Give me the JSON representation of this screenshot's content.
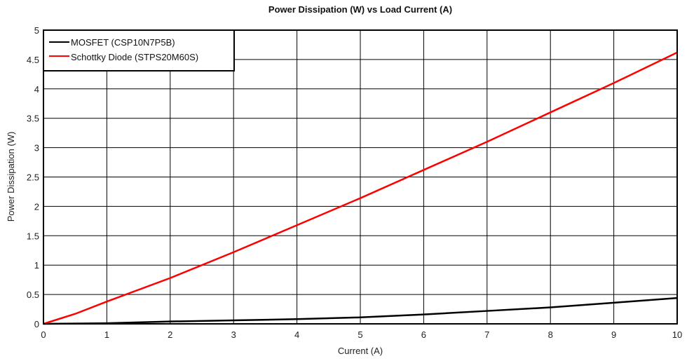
{
  "chart_data": {
    "type": "line",
    "title": "Power Dissipation (W) vs Load Current (A)",
    "xlabel": "Current (A)",
    "ylabel": "Power Dissipation (W)",
    "xlim": [
      0,
      10
    ],
    "ylim": [
      0,
      5
    ],
    "xticks": [
      "0",
      "1",
      "2",
      "3",
      "4",
      "5",
      "6",
      "7",
      "8",
      "9",
      "10"
    ],
    "yticks": [
      "0",
      "0.5",
      "1",
      "1.5",
      "2",
      "2.5",
      "3",
      "3.5",
      "4",
      "4.5",
      "5"
    ],
    "grid": true,
    "legend_position": "top-left",
    "series": [
      {
        "name": "MOSFET (CSP10N7P5B)",
        "color": "#000000",
        "x": [
          0,
          1,
          2,
          3,
          4,
          5,
          6,
          7,
          8,
          9,
          10
        ],
        "y": [
          0,
          0.01,
          0.04,
          0.06,
          0.08,
          0.11,
          0.16,
          0.22,
          0.28,
          0.36,
          0.44
        ]
      },
      {
        "name": "Schottky Diode (STPS20M60S)",
        "color": "#ff0000",
        "x": [
          0,
          0.5,
          1,
          2,
          3,
          4,
          5,
          6,
          7,
          8,
          9,
          10
        ],
        "y": [
          0,
          0.17,
          0.38,
          0.78,
          1.22,
          1.68,
          2.14,
          2.62,
          3.1,
          3.6,
          4.1,
          4.62
        ]
      }
    ]
  }
}
